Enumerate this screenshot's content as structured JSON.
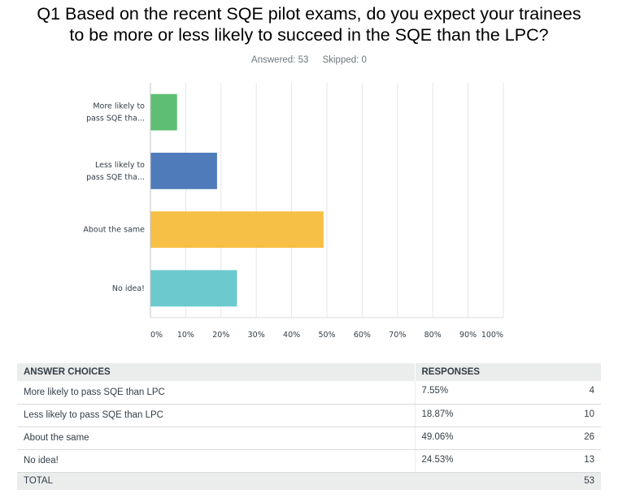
{
  "question": {
    "title_line1": "Q1 Based on the recent SQE pilot exams, do you expect your trainees",
    "title_line2": "to be more or less likely to succeed in the SQE than the LPC?",
    "answered": "Answered: 53",
    "skipped": "Skipped: 0"
  },
  "chart_data": {
    "type": "bar",
    "orientation": "horizontal",
    "categories": [
      [
        "More likely to",
        "pass SQE tha..."
      ],
      [
        "Less likely to",
        "pass SQE tha..."
      ],
      [
        "About the same"
      ],
      [
        "No idea!"
      ]
    ],
    "values": [
      7.55,
      18.87,
      49.06,
      24.53
    ],
    "colors": [
      "#5ebf72",
      "#4f7bba",
      "#f6bf45",
      "#6ccace"
    ],
    "xlim": [
      0,
      100
    ],
    "x_ticks": [
      "0%",
      "10%",
      "20%",
      "30%",
      "40%",
      "50%",
      "60%",
      "70%",
      "80%",
      "90%",
      "100%"
    ],
    "grid": true
  },
  "table": {
    "headers": [
      "ANSWER CHOICES",
      "RESPONSES"
    ],
    "rows": [
      {
        "choice": "More likely to pass SQE than LPC",
        "percent": "7.55%",
        "count": "4"
      },
      {
        "choice": "Less likely to pass SQE than LPC",
        "percent": "18.87%",
        "count": "10"
      },
      {
        "choice": "About the same",
        "percent": "49.06%",
        "count": "26"
      },
      {
        "choice": "No idea!",
        "percent": "24.53%",
        "count": "13"
      }
    ],
    "total_label": "TOTAL",
    "total_count": "53"
  }
}
